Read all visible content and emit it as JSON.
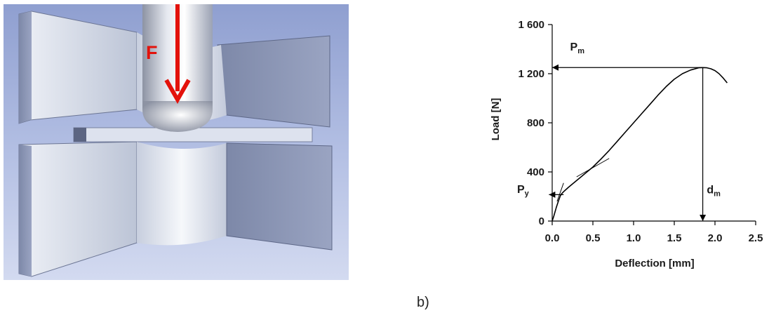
{
  "illustration": {
    "force_label": "F",
    "force_color": "#e3120b",
    "background_color": "#a9b6dc"
  },
  "caption": "b)",
  "chart_data": {
    "type": "line",
    "xlabel": "Deflection [mm]",
    "ylabel": "Load [N]",
    "xlim": [
      0,
      2.5
    ],
    "ylim": [
      0,
      1600
    ],
    "x_ticks": [
      0,
      0.5,
      1,
      1.5,
      2,
      2.5
    ],
    "x_tick_labels": [
      "0.0",
      "0.5",
      "1.0",
      "1.5",
      "2.0",
      "2.5"
    ],
    "y_ticks": [
      0,
      400,
      800,
      1200,
      1600
    ],
    "y_tick_labels": [
      "0",
      "400",
      "800",
      "1 200",
      "1 600"
    ],
    "grid": false,
    "series": [
      {
        "color": "#000000",
        "x": [
          0.0,
          0.02,
          0.05,
          0.08,
          0.1,
          0.12,
          0.15,
          0.2,
          0.3,
          0.4,
          0.5,
          0.6,
          0.7,
          0.8,
          0.9,
          1.0,
          1.1,
          1.2,
          1.3,
          1.4,
          1.5,
          1.6,
          1.7,
          1.8,
          1.85,
          1.9,
          1.95,
          2.0,
          2.05,
          2.1,
          2.15
        ],
        "y": [
          0,
          40,
          110,
          170,
          205,
          225,
          245,
          275,
          330,
          385,
          440,
          505,
          575,
          650,
          725,
          800,
          875,
          950,
          1025,
          1095,
          1155,
          1200,
          1230,
          1248,
          1250,
          1248,
          1240,
          1225,
          1200,
          1165,
          1125
        ]
      }
    ],
    "aux_lines": [
      {
        "x": [
          0.06,
          0.14
        ],
        "y": [
          160,
          310
        ]
      },
      {
        "x": [
          0.3,
          0.7
        ],
        "y": [
          360,
          510
        ]
      }
    ],
    "annotations": [
      {
        "name": "P_m",
        "base": "P",
        "sub": "m",
        "arrow_from": [
          1.85,
          1250
        ],
        "arrow_to": [
          0.0,
          1250
        ]
      },
      {
        "name": "d_m",
        "base": "d",
        "sub": "m",
        "arrow_from": [
          1.85,
          1250
        ],
        "arrow_to": [
          1.85,
          0
        ]
      },
      {
        "name": "P_y",
        "base": "P",
        "sub": "y",
        "arrow_from": [
          0.14,
          215
        ],
        "arrow_to": [
          -0.04,
          215
        ]
      }
    ]
  }
}
